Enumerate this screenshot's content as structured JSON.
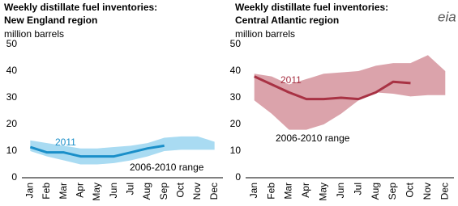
{
  "logo": "eia",
  "chart_data": [
    {
      "type": "line",
      "title": "Weekly distillate fuel inventories:",
      "subtitle": "New England region",
      "ylabel": "million barrels",
      "categories": [
        "Jan",
        "Feb",
        "Mar",
        "Apr",
        "May",
        "Jun",
        "Jul",
        "Aug",
        "Sep",
        "Oct",
        "Nov",
        "Dec"
      ],
      "ylim": [
        0,
        50
      ],
      "yticks": [
        0,
        10,
        20,
        30,
        40,
        50
      ],
      "grid": false,
      "series": [
        {
          "name": "2011",
          "color": "#1a8fc9",
          "values": [
            11.5,
            9.5,
            9.5,
            8,
            8,
            8,
            9.5,
            11,
            12,
            null,
            null,
            null
          ]
        },
        {
          "name": "2006-2010 range",
          "color": "#a9dbf2",
          "low": [
            10,
            8,
            6.5,
            5,
            5,
            5.5,
            6.5,
            8,
            10,
            10.5,
            10.5,
            10.5
          ],
          "high": [
            14,
            13,
            12,
            11,
            11,
            11.5,
            12,
            13,
            15,
            15.5,
            15.5,
            13.5
          ]
        }
      ]
    },
    {
      "type": "line",
      "title": "Weekly distillate fuel inventories:",
      "subtitle": "Central Atlantic region",
      "ylabel": "million barrels",
      "categories": [
        "Jan",
        "Feb",
        "Mar",
        "Apr",
        "May",
        "Jun",
        "Jul",
        "Aug",
        "Sep",
        "Oct",
        "Nov",
        "Dec"
      ],
      "ylim": [
        0,
        50
      ],
      "yticks": [
        0,
        10,
        20,
        30,
        40,
        50
      ],
      "grid": false,
      "series": [
        {
          "name": "2011",
          "color": "#a83244",
          "values": [
            38,
            35,
            32,
            29.5,
            29.5,
            30,
            29.5,
            32,
            36,
            35.5,
            null,
            null
          ]
        },
        {
          "name": "2006-2010 range",
          "color": "#dba3ab",
          "low": [
            29,
            24,
            18,
            18,
            20,
            24,
            29,
            32,
            31.5,
            30.5,
            31,
            31
          ],
          "high": [
            39,
            38,
            35,
            37,
            39,
            39.5,
            40,
            42,
            43,
            43,
            46,
            40
          ]
        }
      ]
    }
  ]
}
